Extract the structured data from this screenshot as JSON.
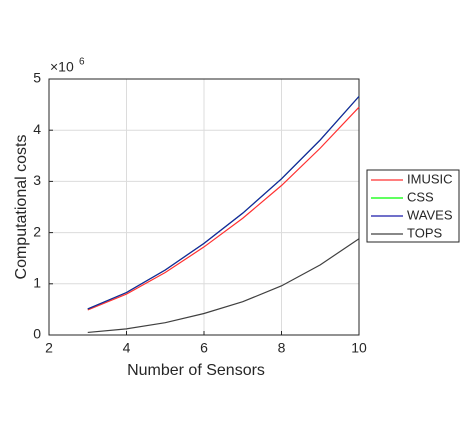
{
  "chart_data": {
    "type": "line",
    "x_label": "Number of Sensors",
    "y_label": "Computational costs",
    "y_multiplier_base": "×10",
    "y_multiplier_exponent": "6",
    "x": [
      3,
      4,
      5,
      6,
      7,
      8,
      9,
      10
    ],
    "series": [
      {
        "name": "IMUSIC",
        "color": "#ff3030",
        "values": [
          0.49,
          0.8,
          1.22,
          1.72,
          2.28,
          2.92,
          3.65,
          4.45
        ]
      },
      {
        "name": "CSS",
        "color": "#00ff00",
        "values": [
          0.51,
          0.83,
          1.27,
          1.79,
          2.38,
          3.05,
          3.81,
          4.66
        ]
      },
      {
        "name": "WAVES",
        "color": "#1a1aaa",
        "values": [
          0.51,
          0.83,
          1.27,
          1.79,
          2.38,
          3.05,
          3.81,
          4.66
        ]
      },
      {
        "name": "TOPS",
        "color": "#404040",
        "values": [
          0.05,
          0.12,
          0.24,
          0.42,
          0.65,
          0.96,
          1.37,
          1.88
        ]
      }
    ],
    "xlim": [
      2,
      10
    ],
    "xticks": [
      2,
      4,
      6,
      8,
      10
    ],
    "ylim": [
      0,
      5
    ],
    "yticks": [
      0,
      1,
      2,
      3,
      4,
      5
    ],
    "grid": true,
    "legend": "outside-right"
  }
}
